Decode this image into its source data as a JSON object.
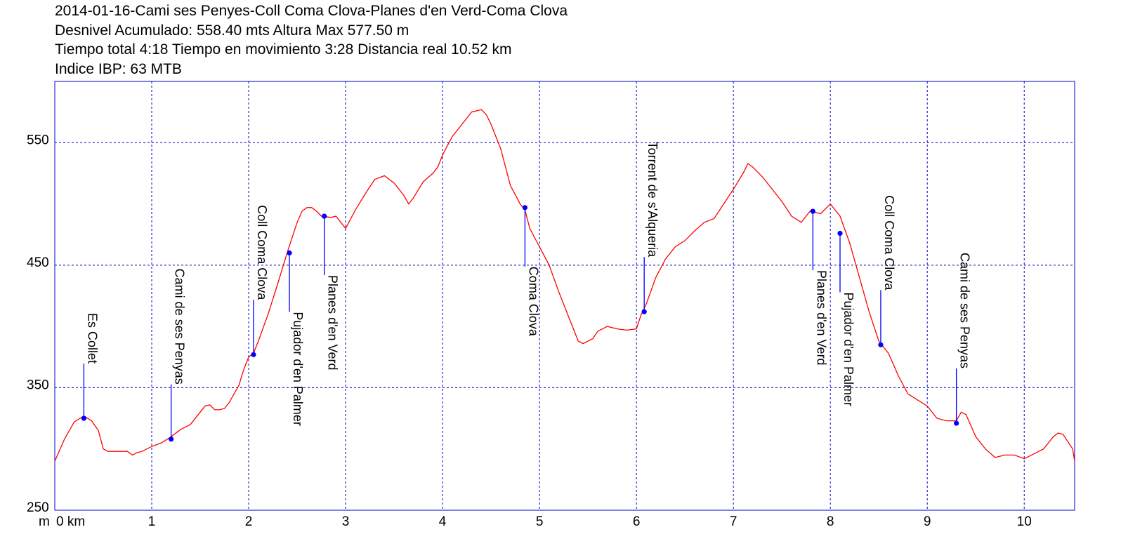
{
  "chart_data": {
    "type": "line",
    "title": "2014-01-16-Cami ses Penyes-Coll Coma Clova-Planes d'en Verd-Coma Clova",
    "subtitle_lines": [
      "Desnivel Acumulado: 558.40 mts  Altura Max 577.50 m",
      "Tiempo total 4:18 Tiempo en movimiento 3:28 Distancia real 10.52 km",
      "Indice IBP: 63 MTB"
    ],
    "xlabel": "km",
    "ylabel": "m",
    "xlim": [
      0,
      10.52
    ],
    "ylim": [
      250,
      600
    ],
    "x_ticks": [
      0,
      1,
      2,
      3,
      4,
      5,
      6,
      7,
      8,
      9,
      10
    ],
    "y_ticks": [
      250,
      350,
      450,
      550
    ],
    "y_tick_labels": [
      "250",
      "350",
      "450",
      "550"
    ],
    "x_tick_labels": [
      "0 km",
      "1",
      "2",
      "3",
      "4",
      "5",
      "6",
      "7",
      "8",
      "9",
      "10"
    ],
    "grid": true,
    "line_color": "#ff0000",
    "grid_color": "#0000cc",
    "waypoint_color": "#0000ff",
    "series": [
      {
        "x": [
          0,
          0.1,
          0.2,
          0.3,
          0.38,
          0.45,
          0.5,
          0.55,
          0.6,
          0.75,
          0.8,
          0.85,
          0.9,
          1.0,
          1.1,
          1.2,
          1.3,
          1.4,
          1.5,
          1.55,
          1.6,
          1.65,
          1.7,
          1.75,
          1.8,
          1.9,
          1.95,
          2.0,
          2.05,
          2.1,
          2.2,
          2.3,
          2.4,
          2.5,
          2.55,
          2.6,
          2.65,
          2.7,
          2.75,
          2.85,
          2.9,
          3.0,
          3.1,
          3.2,
          3.3,
          3.4,
          3.5,
          3.6,
          3.65,
          3.7,
          3.8,
          3.9,
          3.95,
          4.0,
          4.1,
          4.2,
          4.3,
          4.4,
          4.45,
          4.5,
          4.6,
          4.7,
          4.8,
          4.85,
          4.9,
          5.0,
          5.1,
          5.2,
          5.3,
          5.4,
          5.45,
          5.5,
          5.55,
          5.6,
          5.7,
          5.8,
          5.9,
          6.0,
          6.05,
          6.1,
          6.2,
          6.3,
          6.4,
          6.5,
          6.6,
          6.7,
          6.8,
          6.9,
          7.0,
          7.1,
          7.15,
          7.2,
          7.3,
          7.4,
          7.5,
          7.6,
          7.7,
          7.8,
          7.85,
          7.9,
          8.0,
          8.1,
          8.2,
          8.3,
          8.4,
          8.5,
          8.6,
          8.7,
          8.8,
          8.9,
          9.0,
          9.1,
          9.2,
          9.3,
          9.35,
          9.4,
          9.5,
          9.6,
          9.7,
          9.8,
          9.9,
          10.0,
          10.1,
          10.2,
          10.3,
          10.35,
          10.4,
          10.5,
          10.52
        ],
        "y": [
          290,
          308,
          322,
          327,
          323,
          315,
          300,
          298,
          298,
          298,
          295,
          297,
          298,
          302,
          305,
          310,
          316,
          320,
          330,
          335,
          336,
          332,
          332,
          333,
          338,
          352,
          365,
          375,
          378,
          388,
          410,
          435,
          461,
          485,
          494,
          497,
          497,
          494,
          490,
          489,
          490,
          480,
          495,
          508,
          520,
          523,
          517,
          507,
          500,
          505,
          518,
          525,
          530,
          540,
          555,
          565,
          575,
          577,
          573,
          565,
          545,
          515,
          500,
          495,
          480,
          465,
          450,
          428,
          408,
          388,
          386,
          388,
          390,
          396,
          400,
          398,
          397,
          398,
          410,
          418,
          440,
          455,
          465,
          470,
          478,
          485,
          488,
          500,
          512,
          525,
          533,
          530,
          522,
          512,
          502,
          490,
          485,
          495,
          493,
          492,
          500,
          490,
          468,
          440,
          412,
          388,
          378,
          360,
          345,
          340,
          335,
          325,
          323,
          323,
          330,
          328,
          310,
          300,
          293,
          295,
          295,
          292,
          296,
          300,
          310,
          313,
          312,
          300,
          290
        ]
      }
    ],
    "waypoints": [
      {
        "label": "Es Collet",
        "x": 0.3,
        "y": 325,
        "label_side": "above"
      },
      {
        "label": "Cami de ses Penyas",
        "x": 1.2,
        "y": 308,
        "label_side": "above"
      },
      {
        "label": "Coll Coma Clova",
        "x": 2.05,
        "y": 377,
        "label_side": "above"
      },
      {
        "label": "Pujador d'en Palmer",
        "x": 2.42,
        "y": 460,
        "label_side": "below"
      },
      {
        "label": "Planes d'en Verd",
        "x": 2.78,
        "y": 490,
        "label_side": "below"
      },
      {
        "label": "Coma Clova",
        "x": 4.85,
        "y": 497,
        "label_side": "below"
      },
      {
        "label": "Torrent de s'Alqueria",
        "x": 6.08,
        "y": 412,
        "label_side": "above"
      },
      {
        "label": "Planes d'en Verd",
        "x": 7.82,
        "y": 494,
        "label_side": "below"
      },
      {
        "label": "Pujador d'en Palmer",
        "x": 8.1,
        "y": 476,
        "label_side": "below"
      },
      {
        "label": "Coll Coma Clova",
        "x": 8.52,
        "y": 385,
        "label_side": "above"
      },
      {
        "label": "Cami de ses Penyas",
        "x": 9.3,
        "y": 321,
        "label_side": "above"
      }
    ]
  }
}
